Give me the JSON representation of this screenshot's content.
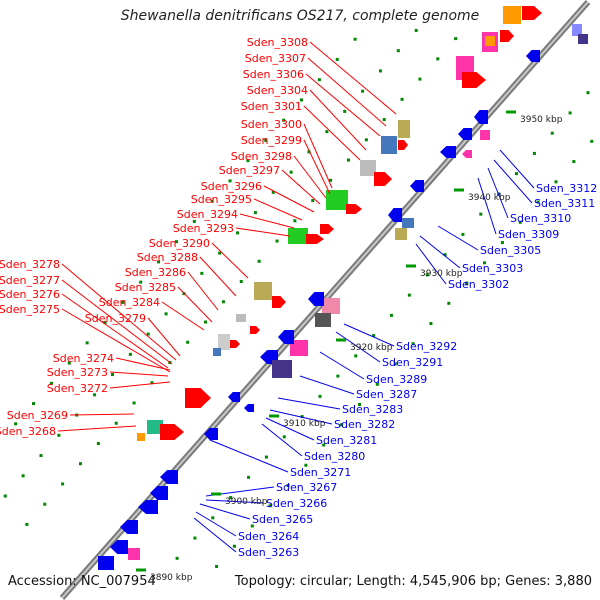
{
  "title": "Shewanella denitrificans OS217, complete genome",
  "footer": {
    "accession": "Accession: NC_007954",
    "info": "Topology: circular; Length: 4,545,906 bp; Genes: 3,880"
  },
  "colors": {
    "label_top": "#ff0000",
    "label_bottom": "#0000ee",
    "backbone": "#808080",
    "tick": "#008800"
  },
  "scale_labels": [
    "3950 kbp",
    "3940 kbp",
    "3930 kbp",
    "3920 kbp",
    "3910 kbp",
    "3900 kbp",
    "3890 kbp"
  ],
  "labels_top": [
    "Sden_3308",
    "Sden_3307",
    "Sden_3306",
    "Sden_3304",
    "Sden_3301",
    "Sden_3300",
    "Sden_3299",
    "Sden_3298",
    "Sden_3297",
    "Sden_3296",
    "Sden_3295",
    "Sden_3294",
    "Sden_3293",
    "Sden_3290",
    "Sden_3288",
    "Sden_3286",
    "Sden_3285",
    "Sden_3284",
    "Sden_3278",
    "Sden_3277",
    "Sden_3276",
    "Sden_3275",
    "Sden_3279",
    "Sden_3274",
    "Sden_3273",
    "Sden_3272",
    "Sden_3269",
    "Sden_3268"
  ],
  "labels_bottom": [
    "Sden_3312",
    "Sden_3311",
    "Sden_3310",
    "Sden_3309",
    "Sden_3305",
    "Sden_3303",
    "Sden_3302",
    "Sden_3292",
    "Sden_3291",
    "Sden_3289",
    "Sden_3287",
    "Sden_3283",
    "Sden_3282",
    "Sden_3281",
    "Sden_3280",
    "Sden_3271",
    "Sden_3267",
    "Sden_3266",
    "Sden_3265",
    "Sden_3264",
    "Sden_3263"
  ]
}
